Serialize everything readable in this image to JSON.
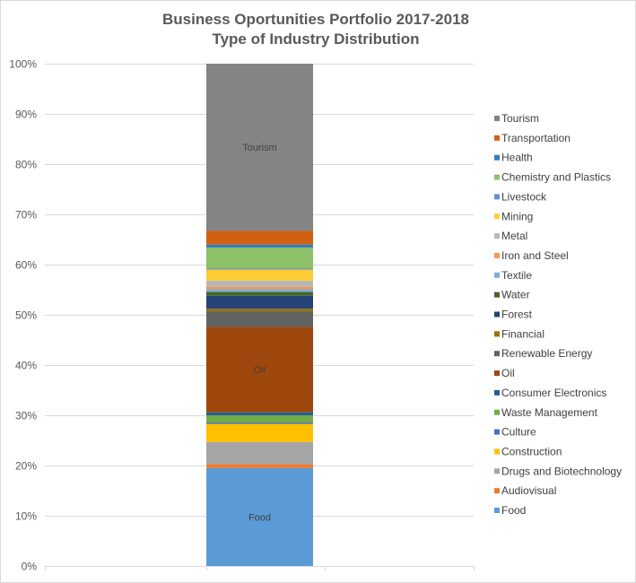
{
  "chart_data": {
    "type": "bar",
    "stacked": "percent",
    "title": [
      "Business Oportunities Portfolio 2017-2018",
      "Type of Industry Distribution"
    ],
    "xlabel": "",
    "ylabel": "",
    "ylim": [
      0,
      100
    ],
    "y_ticks": [
      "0%",
      "10%",
      "20%",
      "30%",
      "40%",
      "50%",
      "60%",
      "70%",
      "80%",
      "90%",
      "100%"
    ],
    "grid": true,
    "legend_position": "right",
    "series": [
      {
        "name": "Food",
        "value": 19.5,
        "color": "#5B9BD5",
        "label": "Food"
      },
      {
        "name": "Audiovisual",
        "value": 0.8,
        "color": "#ED7D31"
      },
      {
        "name": "Drugs and Biotechnology",
        "value": 4.4,
        "color": "#A5A5A5"
      },
      {
        "name": "Construction",
        "value": 3.6,
        "color": "#FFC000"
      },
      {
        "name": "Culture",
        "value": 0.3,
        "color": "#4472C4"
      },
      {
        "name": "Waste Management",
        "value": 1.4,
        "color": "#70AD47"
      },
      {
        "name": "Consumer Electronics",
        "value": 0.6,
        "color": "#255E91"
      },
      {
        "name": "Oil",
        "value": 17.0,
        "color": "#9E480E",
        "label": "Oil"
      },
      {
        "name": "Renewable Energy",
        "value": 3.1,
        "color": "#636363"
      },
      {
        "name": "Financial",
        "value": 0.5,
        "color": "#997300"
      },
      {
        "name": "Forest",
        "value": 2.6,
        "color": "#264478"
      },
      {
        "name": "Water",
        "value": 0.8,
        "color": "#43682B"
      },
      {
        "name": "Textile",
        "value": 0.5,
        "color": "#7CAFDD"
      },
      {
        "name": "Iron and Steel",
        "value": 0.5,
        "color": "#F1975A"
      },
      {
        "name": "Metal",
        "value": 1.2,
        "color": "#B7B7B7"
      },
      {
        "name": "Mining",
        "value": 2.2,
        "color": "#FFCD33"
      },
      {
        "name": "Livestock",
        "value": 0.2,
        "color": "#698ED0"
      },
      {
        "name": "Chemistry and Plastics",
        "value": 4.2,
        "color": "#8CC168"
      },
      {
        "name": "Health",
        "value": 0.6,
        "color": "#327DC2"
      },
      {
        "name": "Transportation",
        "value": 2.7,
        "color": "#D26012"
      },
      {
        "name": "Tourism",
        "value": 33.3,
        "color": "#848484",
        "label": "Tourism"
      }
    ],
    "legend_order": [
      "Tourism",
      "Transportation",
      "Health",
      "Chemistry and Plastics",
      "Livestock",
      "Mining",
      "Metal",
      "Iron and Steel",
      "Textile",
      "Water",
      "Forest",
      "Financial",
      "Renewable Energy",
      "Oil",
      "Consumer Electronics",
      "Waste Management",
      "Culture",
      "Construction",
      "Drugs and Biotechnology",
      "Audiovisual",
      "Food"
    ]
  }
}
